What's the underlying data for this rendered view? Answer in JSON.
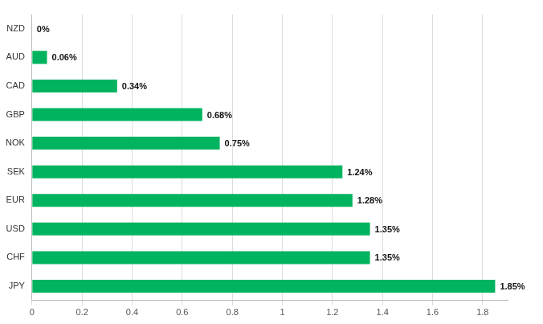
{
  "chart_data": {
    "type": "bar",
    "orientation": "horizontal",
    "categories": [
      "NZD",
      "AUD",
      "CAD",
      "GBP",
      "NOK",
      "SEK",
      "EUR",
      "USD",
      "CHF",
      "JPY"
    ],
    "values": [
      0,
      0.06,
      0.34,
      0.68,
      0.75,
      1.24,
      1.28,
      1.35,
      1.35,
      1.85
    ],
    "value_labels": [
      "0%",
      "0.06%",
      "0.34%",
      "0.68%",
      "0.75%",
      "1.24%",
      "1.28%",
      "1.35%",
      "1.35%",
      "1.85%"
    ],
    "data_labels": true,
    "color": "#00b35e",
    "xlim": [
      0,
      1.9
    ],
    "xticks": [
      0,
      0.2,
      0.4,
      0.6,
      0.8,
      1,
      1.2,
      1.4,
      1.6,
      1.8
    ],
    "grid": true
  }
}
